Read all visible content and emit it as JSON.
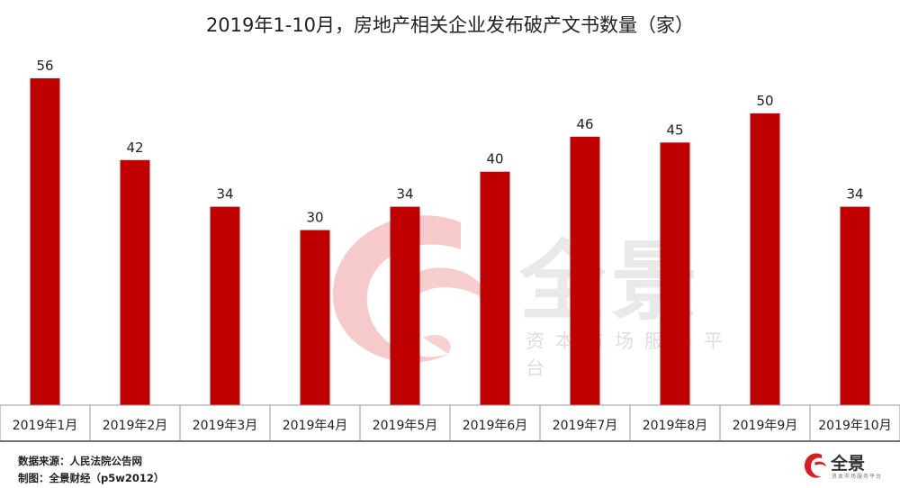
{
  "chart_data": {
    "type": "bar",
    "title": "2019年1-10月，房地产相关企业发布破产文书数量（家）",
    "categories": [
      "2019年1月",
      "2019年2月",
      "2019年3月",
      "2019年4月",
      "2019年5月",
      "2019年6月",
      "2019年7月",
      "2019年8月",
      "2019年9月",
      "2019年10月"
    ],
    "values": [
      56,
      42,
      34,
      30,
      34,
      40,
      46,
      45,
      50,
      34
    ],
    "ylim": [
      0,
      56
    ],
    "grid": false,
    "legend": "none",
    "colors": {
      "bar": "#c00000",
      "text": "#222222"
    }
  },
  "footer": {
    "source": "数据来源：人民法院公告网",
    "credit": "制图：全景财经（p5w2012）"
  },
  "watermark": {
    "brand": "全景",
    "tagline": "资本市场服务平台"
  },
  "brand_logo": {
    "name": "全景",
    "tagline": "资本市场服务平台"
  }
}
